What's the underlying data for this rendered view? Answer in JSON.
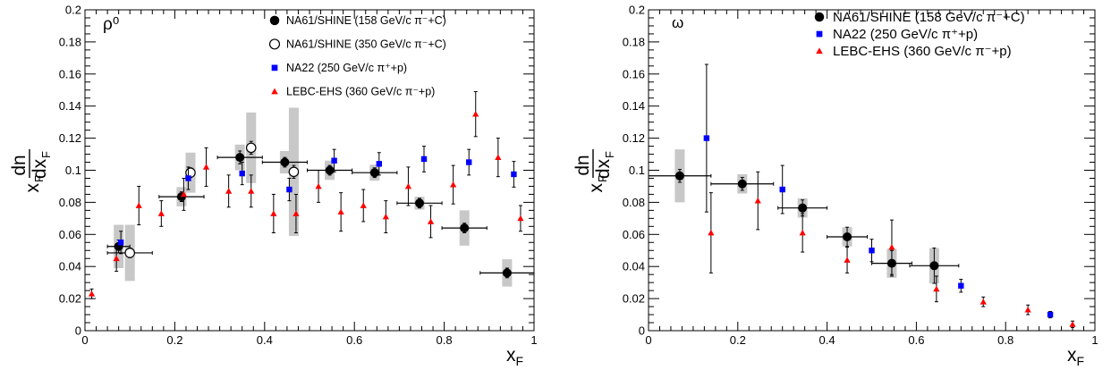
{
  "chart_data": [
    {
      "type": "scatter",
      "panel_label": "ρ⁰",
      "xlabel": "x",
      "xlabel_sub": "F",
      "ylabel_prefix": "x",
      "ylabel_prefix_sub": "F",
      "ylabel_num": "dn",
      "ylabel_den": "dx",
      "ylabel_den_sub": "F",
      "xlim": [
        0,
        1
      ],
      "ylim": [
        0,
        0.2
      ],
      "x_ticks": [
        "0",
        "0.2",
        "0.4",
        "0.6",
        "0.8",
        "1"
      ],
      "y_ticks": [
        "0",
        "0.02",
        "0.04",
        "0.06",
        "0.08",
        "0.1",
        "0.12",
        "0.14",
        "0.16",
        "0.18",
        "0.2"
      ],
      "legend_position": "top-right",
      "series": [
        {
          "name": "NA61/SHINE (158 GeV/c π⁻+C)",
          "marker": "filled-circle",
          "color": "#000000",
          "points": [
            {
              "x": 0.075,
              "y": 0.0525,
              "xerr": 0.025,
              "yerr": 0.004,
              "sys": 0.0135
            },
            {
              "x": 0.215,
              "y": 0.0835,
              "xerr": 0.05,
              "yerr": 0.003,
              "sys": 0.006
            },
            {
              "x": 0.345,
              "y": 0.108,
              "xerr": 0.05,
              "yerr": 0.004,
              "sys": 0.008
            },
            {
              "x": 0.445,
              "y": 0.105,
              "xerr": 0.05,
              "yerr": 0.003,
              "sys": 0.007
            },
            {
              "x": 0.545,
              "y": 0.1,
              "xerr": 0.05,
              "yerr": 0.003,
              "sys": 0.006
            },
            {
              "x": 0.645,
              "y": 0.0985,
              "xerr": 0.05,
              "yerr": 0.003,
              "sys": 0.005
            },
            {
              "x": 0.745,
              "y": 0.0795,
              "xerr": 0.05,
              "yerr": 0.003,
              "sys": 0.004
            },
            {
              "x": 0.845,
              "y": 0.064,
              "xerr": 0.05,
              "yerr": 0.003,
              "sys": 0.011
            },
            {
              "x": 0.94,
              "y": 0.036,
              "xerr": 0.06,
              "yerr": 0.003,
              "sys": 0.0085
            }
          ]
        },
        {
          "name": "NA61/SHINE (350 GeV/c π⁻+C)",
          "marker": "open-circle",
          "color": "#000000",
          "points": [
            {
              "x": 0.1,
              "y": 0.0485,
              "xerr": 0.05,
              "yerr": 0.003,
              "sys": 0.0175
            },
            {
              "x": 0.235,
              "y": 0.0985,
              "xerr": 0.0,
              "yerr": 0.003,
              "sys": 0.0125
            },
            {
              "x": 0.37,
              "y": 0.114,
              "xerr": 0.0,
              "yerr": 0.004,
              "sys": 0.022
            },
            {
              "x": 0.465,
              "y": 0.099,
              "xerr": 0.0,
              "yerr": 0.004,
              "sys": 0.04
            }
          ]
        },
        {
          "name": "NA22 (250 GeV/c π⁺+p)",
          "marker": "filled-square",
          "color": "#0000ff",
          "points": [
            {
              "x": 0.08,
              "y": 0.055,
              "yerr": 0.007
            },
            {
              "x": 0.23,
              "y": 0.095,
              "yerr": 0.007
            },
            {
              "x": 0.35,
              "y": 0.098,
              "yerr": 0.007
            },
            {
              "x": 0.455,
              "y": 0.088,
              "yerr": 0.007
            },
            {
              "x": 0.555,
              "y": 0.106,
              "yerr": 0.007
            },
            {
              "x": 0.655,
              "y": 0.104,
              "yerr": 0.007
            },
            {
              "x": 0.755,
              "y": 0.107,
              "yerr": 0.008
            },
            {
              "x": 0.855,
              "y": 0.105,
              "yerr": 0.008
            },
            {
              "x": 0.955,
              "y": 0.0975,
              "yerr": 0.008
            }
          ]
        },
        {
          "name": "LEBC-EHS (360 GeV/c π⁻+p)",
          "marker": "filled-triangle",
          "color": "#ff0000",
          "points": [
            {
              "x": 0.015,
              "y": 0.023,
              "yerr": 0.003
            },
            {
              "x": 0.07,
              "y": 0.045,
              "yerr": 0.008
            },
            {
              "x": 0.12,
              "y": 0.078,
              "yerr": 0.012
            },
            {
              "x": 0.17,
              "y": 0.073,
              "yerr": 0.008
            },
            {
              "x": 0.22,
              "y": 0.085,
              "yerr": 0.01
            },
            {
              "x": 0.27,
              "y": 0.102,
              "yerr": 0.012
            },
            {
              "x": 0.32,
              "y": 0.087,
              "yerr": 0.01
            },
            {
              "x": 0.37,
              "y": 0.087,
              "yerr": 0.01
            },
            {
              "x": 0.42,
              "y": 0.073,
              "yerr": 0.012
            },
            {
              "x": 0.47,
              "y": 0.073,
              "yerr": 0.012
            },
            {
              "x": 0.52,
              "y": 0.09,
              "yerr": 0.01
            },
            {
              "x": 0.57,
              "y": 0.074,
              "yerr": 0.012
            },
            {
              "x": 0.62,
              "y": 0.078,
              "yerr": 0.01
            },
            {
              "x": 0.67,
              "y": 0.071,
              "yerr": 0.01
            },
            {
              "x": 0.72,
              "y": 0.09,
              "yerr": 0.012
            },
            {
              "x": 0.77,
              "y": 0.068,
              "yerr": 0.01
            },
            {
              "x": 0.82,
              "y": 0.091,
              "yerr": 0.012
            },
            {
              "x": 0.87,
              "y": 0.135,
              "yerr": 0.014
            },
            {
              "x": 0.92,
              "y": 0.108,
              "yerr": 0.012
            },
            {
              "x": 0.97,
              "y": 0.07,
              "yerr": 0.008
            }
          ]
        }
      ]
    },
    {
      "type": "scatter",
      "panel_label": "ω",
      "xlabel": "x",
      "xlabel_sub": "F",
      "ylabel_prefix": "x",
      "ylabel_prefix_sub": "F",
      "ylabel_num": "dn",
      "ylabel_den": "dx",
      "ylabel_den_sub": "F",
      "xlim": [
        0,
        1
      ],
      "ylim": [
        0,
        0.2
      ],
      "x_ticks": [
        "0",
        "0.2",
        "0.4",
        "0.6",
        "0.8",
        "1"
      ],
      "y_ticks": [
        "0",
        "0.02",
        "0.04",
        "0.06",
        "0.08",
        "0.1",
        "0.12",
        "0.14",
        "0.16",
        "0.18",
        "0.2"
      ],
      "legend_position": "top-right",
      "series": [
        {
          "name": "NA61/SHINE (158 GeV/c π⁻+C)",
          "marker": "filled-circle",
          "color": "#000000",
          "points": [
            {
              "x": 0.07,
              "y": 0.0965,
              "xerr": 0.07,
              "yerr": 0.004,
              "sys": 0.0165
            },
            {
              "x": 0.21,
              "y": 0.0915,
              "xerr": 0.07,
              "yerr": 0.004,
              "sys": 0.006
            },
            {
              "x": 0.345,
              "y": 0.0765,
              "xerr": 0.055,
              "yerr": 0.005,
              "sys": 0.006
            },
            {
              "x": 0.445,
              "y": 0.0585,
              "xerr": 0.045,
              "yerr": 0.006,
              "sys": 0.006
            },
            {
              "x": 0.545,
              "y": 0.042,
              "xerr": 0.045,
              "yerr": 0.008,
              "sys": 0.009
            },
            {
              "x": 0.64,
              "y": 0.0405,
              "xerr": 0.055,
              "yerr": 0.011,
              "sys": 0.011
            }
          ]
        },
        {
          "name": "NA22 (250 GeV/c π⁺+p)",
          "marker": "filled-square",
          "color": "#0000ff",
          "points": [
            {
              "x": 0.13,
              "y": 0.12,
              "yerr": 0.046
            },
            {
              "x": 0.3,
              "y": 0.088,
              "yerr": 0.015
            },
            {
              "x": 0.5,
              "y": 0.05,
              "yerr": 0.007
            },
            {
              "x": 0.7,
              "y": 0.028,
              "yerr": 0.004
            },
            {
              "x": 0.9,
              "y": 0.01,
              "yerr": 0.002
            }
          ]
        },
        {
          "name": "LEBC-EHS (360 GeV/c π⁻+p)",
          "marker": "filled-triangle",
          "color": "#ff0000",
          "points": [
            {
              "x": 0.14,
              "y": 0.061,
              "yerr": 0.025
            },
            {
              "x": 0.245,
              "y": 0.081,
              "yerr": 0.018
            },
            {
              "x": 0.345,
              "y": 0.061,
              "yerr": 0.012
            },
            {
              "x": 0.445,
              "y": 0.044,
              "yerr": 0.008
            },
            {
              "x": 0.545,
              "y": 0.052,
              "yerr": 0.017
            },
            {
              "x": 0.645,
              "y": 0.026,
              "yerr": 0.008
            },
            {
              "x": 0.75,
              "y": 0.018,
              "yerr": 0.003
            },
            {
              "x": 0.85,
              "y": 0.013,
              "yerr": 0.003
            },
            {
              "x": 0.95,
              "y": 0.004,
              "yerr": 0.002
            }
          ]
        }
      ]
    }
  ]
}
